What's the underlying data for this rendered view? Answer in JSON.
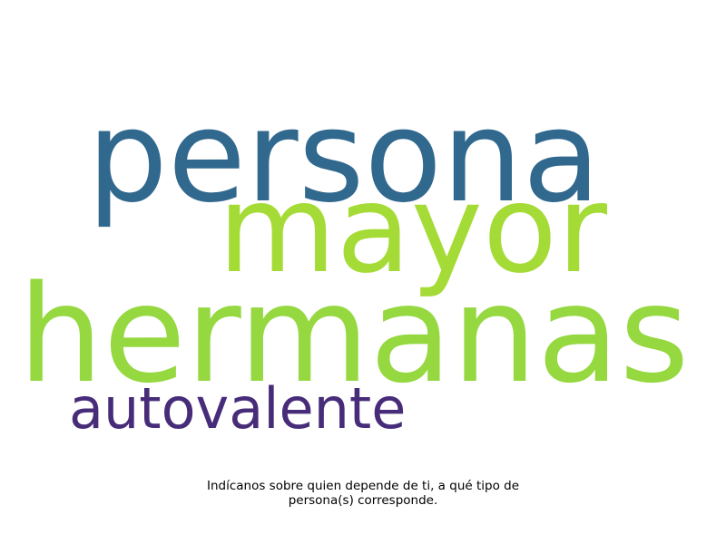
{
  "wordcloud": {
    "words": [
      {
        "text": "persona",
        "color": "#31688e"
      },
      {
        "text": "mayor",
        "color": "#a5db36"
      },
      {
        "text": "hermanas",
        "color": "#95d840"
      },
      {
        "text": "autovalente",
        "color": "#472c7a"
      }
    ]
  },
  "caption": {
    "line1": "Indícanos sobre quien depende de ti, a qué tipo de",
    "line2": "persona(s) corresponde."
  }
}
